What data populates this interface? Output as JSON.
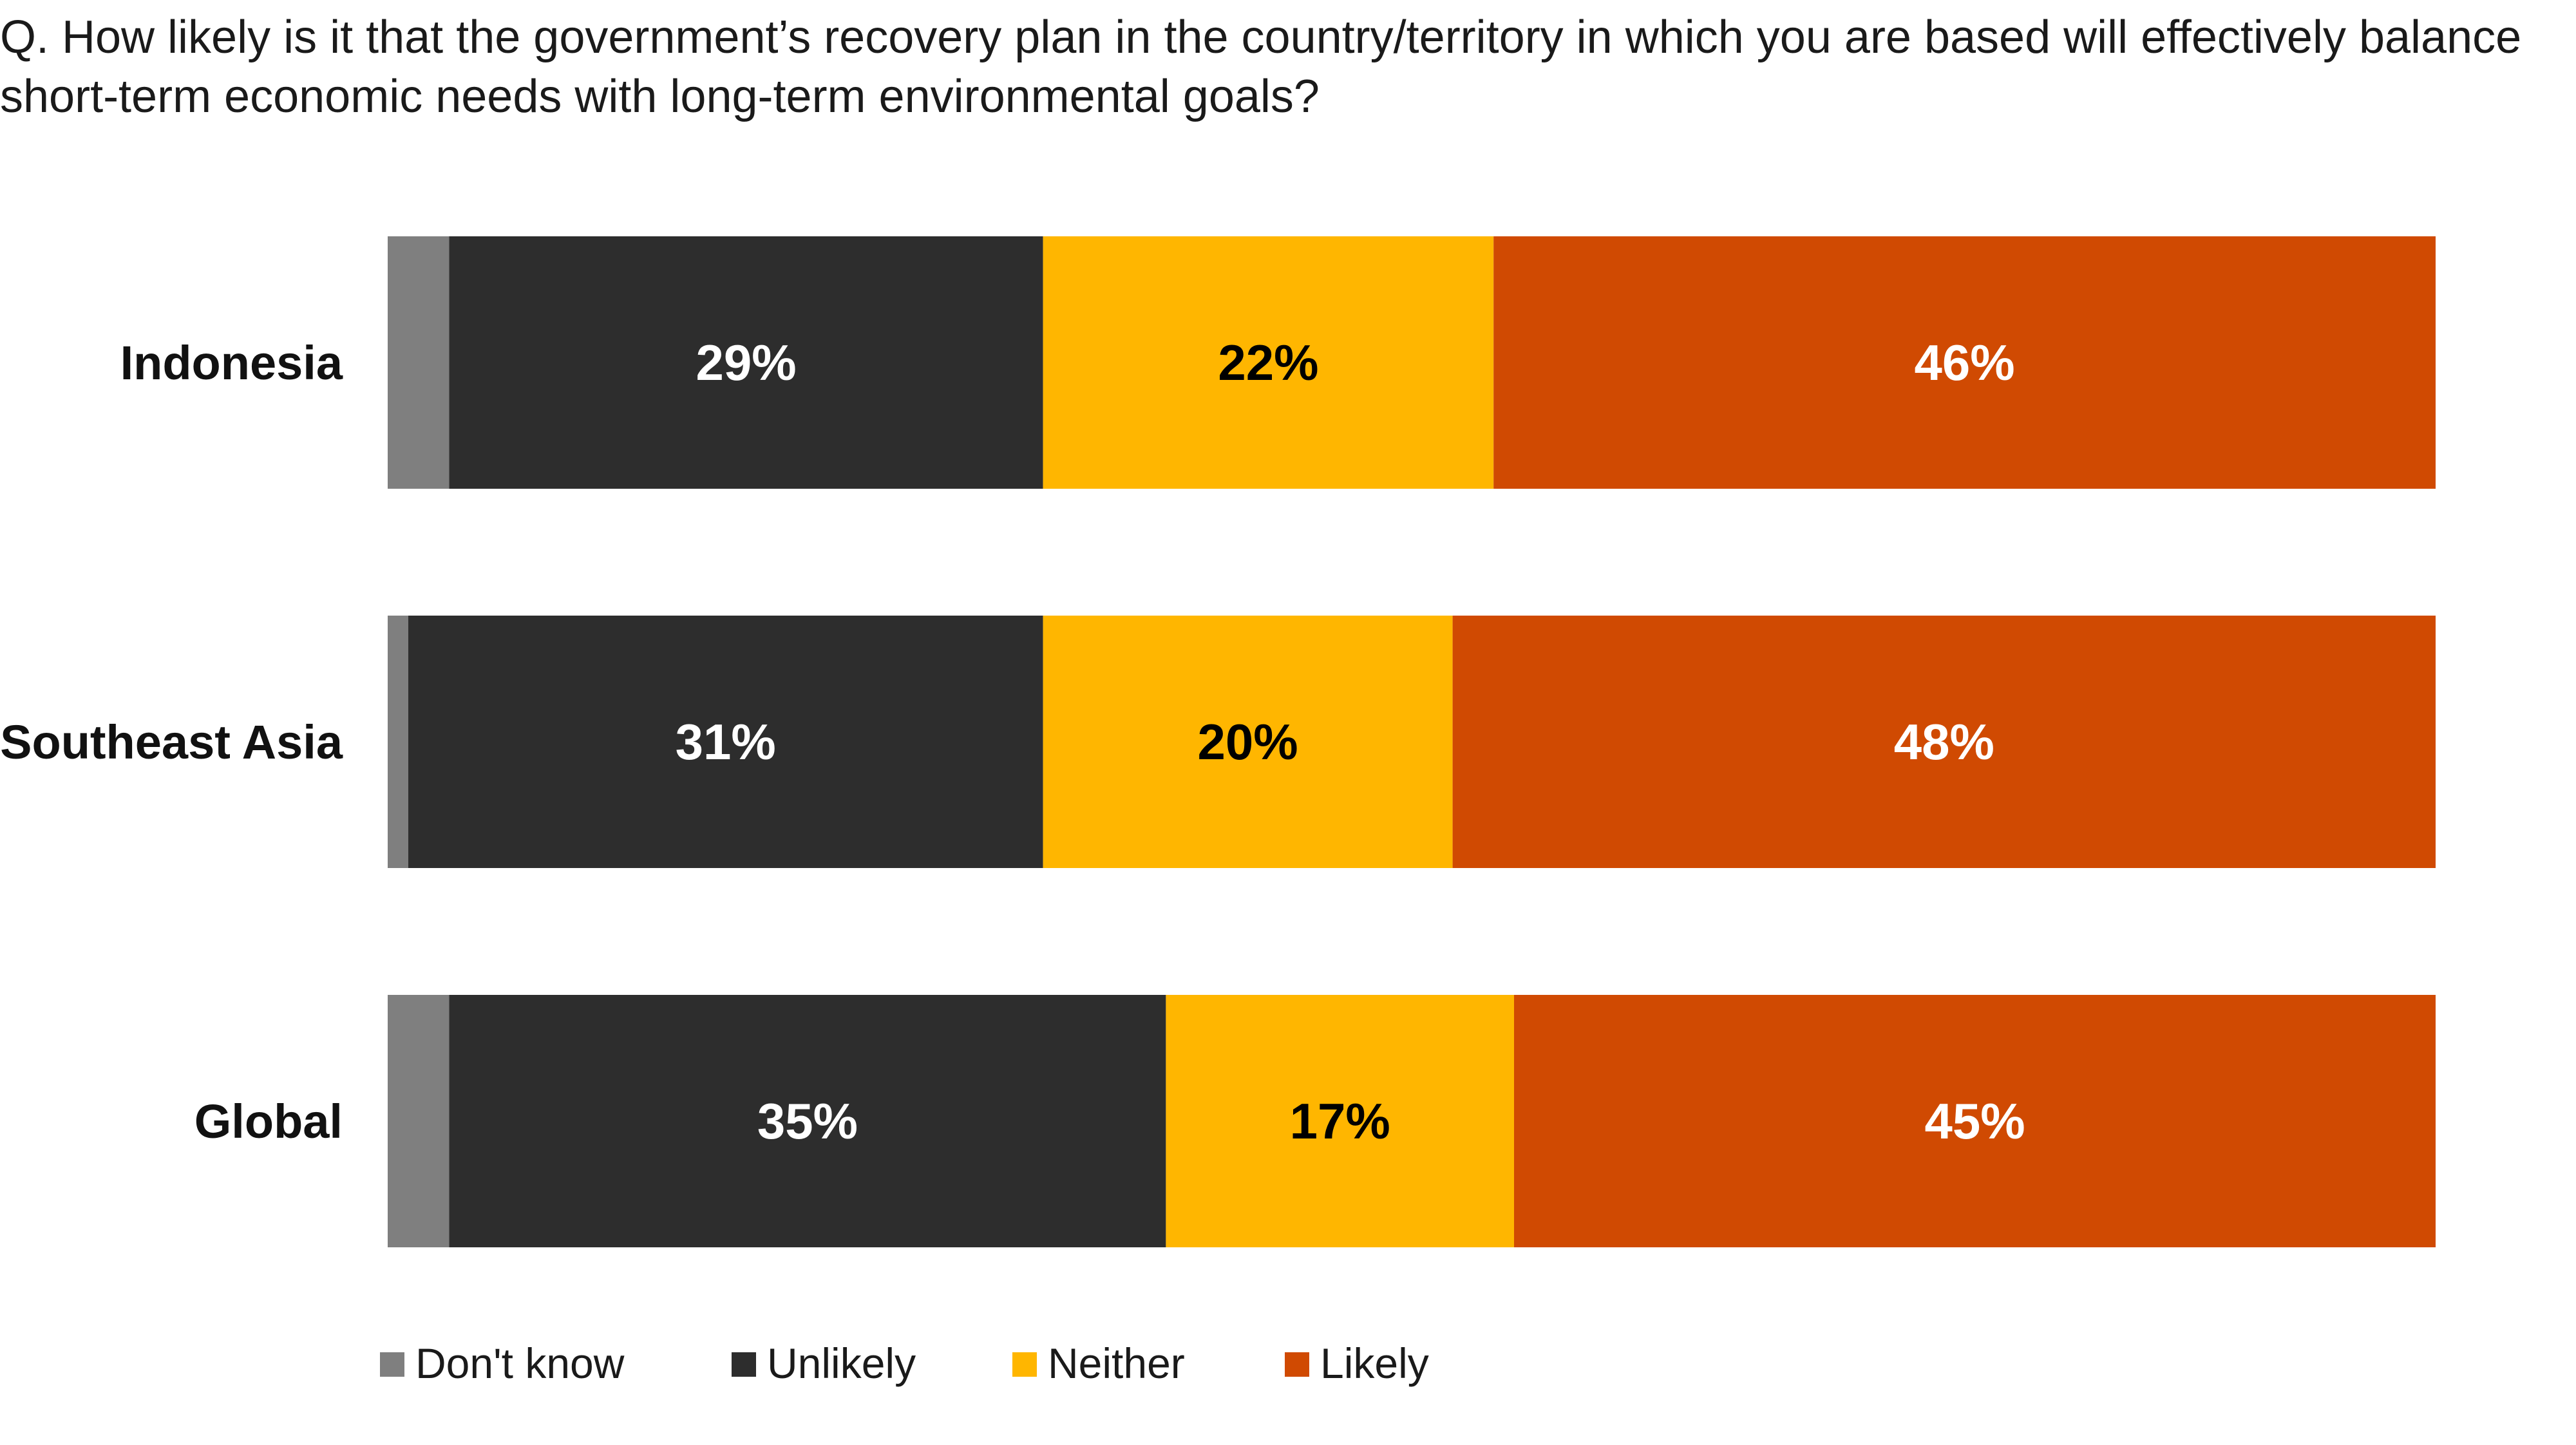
{
  "chart_data": {
    "type": "bar",
    "orientation": "horizontal",
    "stacked": true,
    "title": "Q. How likely is it that the government’s recovery plan in the country/territory in which you are based will effectively balance short-term economic needs with long-term environmental goals?",
    "categories": [
      "Indonesia",
      "Southeast Asia",
      "Global"
    ],
    "series": [
      {
        "name": "Don't know",
        "color": "#7f7f7f",
        "label_color": "#ffffff",
        "show_labels": false,
        "values": [
          3,
          1,
          3
        ]
      },
      {
        "name": "Unlikely",
        "color": "#2d2d2d",
        "label_color": "#ffffff",
        "show_labels": true,
        "values": [
          29,
          31,
          35
        ]
      },
      {
        "name": "Neither",
        "color": "#ffb600",
        "label_color": "#000000",
        "show_labels": true,
        "values": [
          22,
          20,
          17
        ]
      },
      {
        "name": "Likely",
        "color": "#d04a02",
        "label_color": "#ffffff",
        "show_labels": true,
        "values": [
          46,
          48,
          45
        ]
      }
    ],
    "value_suffix": "%",
    "xlim": [
      0,
      100
    ],
    "grid": false,
    "legend_position": "bottom-left"
  }
}
